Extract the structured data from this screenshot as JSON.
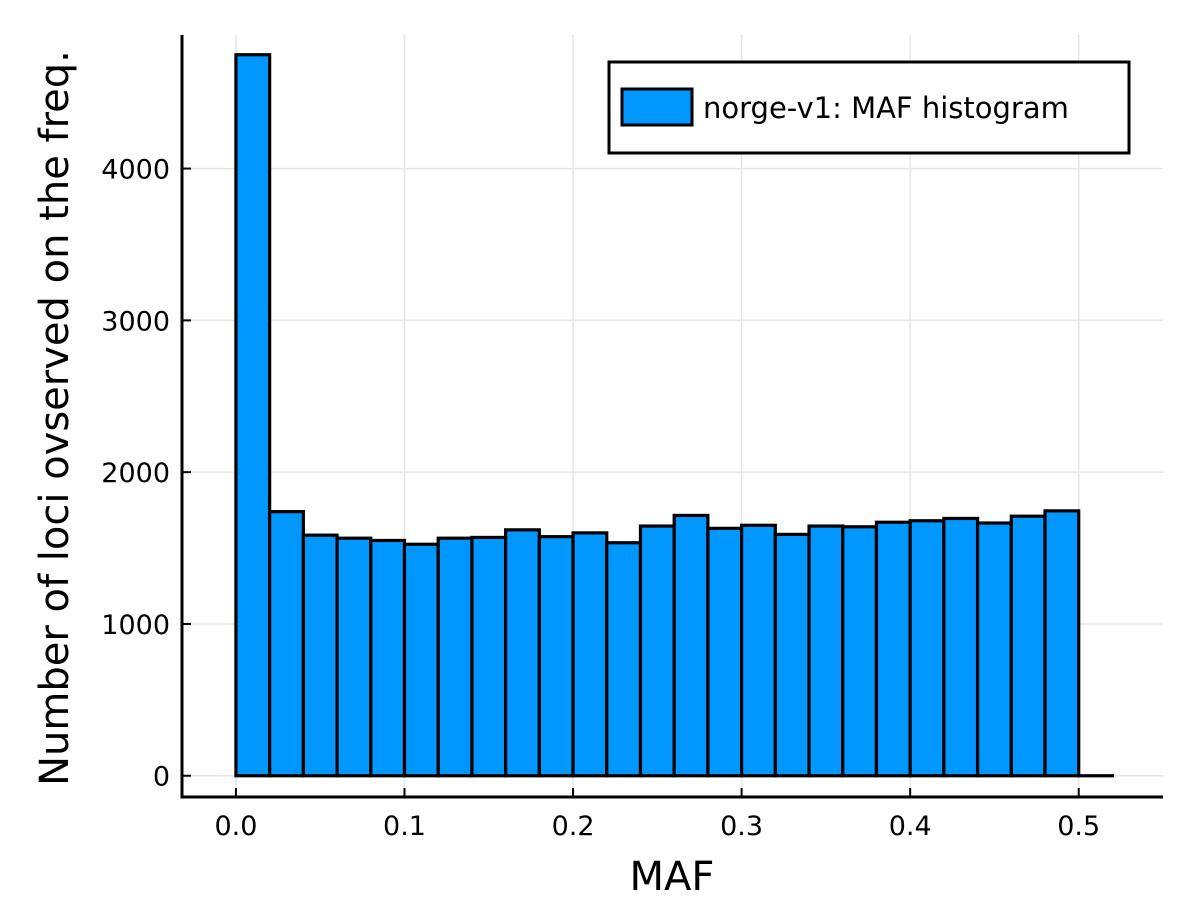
{
  "chart_data": {
    "type": "bar",
    "xlabel": "MAF",
    "ylabel": "Number of loci ovserved on the freq.",
    "legend": {
      "position": "top-right",
      "entries": [
        "norge-v1: MAF histogram"
      ]
    },
    "bar_color": "#0097ff",
    "grid": true,
    "xlim": [
      -0.032,
      0.55
    ],
    "ylim": [
      -140,
      4880
    ],
    "x_ticks": [
      0.0,
      0.1,
      0.2,
      0.3,
      0.4,
      0.5
    ],
    "x_tick_labels": [
      "0.0",
      "0.1",
      "0.2",
      "0.3",
      "0.4",
      "0.5"
    ],
    "y_ticks": [
      0,
      1000,
      2000,
      3000,
      4000
    ],
    "y_tick_labels": [
      "0",
      "1000",
      "2000",
      "3000",
      "4000"
    ],
    "bin_edges": [
      0.0,
      0.02,
      0.04,
      0.06,
      0.08,
      0.1,
      0.12,
      0.14,
      0.16,
      0.18,
      0.2,
      0.22,
      0.24,
      0.26,
      0.28,
      0.3,
      0.32,
      0.34,
      0.36,
      0.38,
      0.4,
      0.42,
      0.44,
      0.46,
      0.48,
      0.5,
      0.52
    ],
    "series": [
      {
        "name": "norge-v1: MAF histogram",
        "values": [
          4750,
          1740,
          1585,
          1565,
          1550,
          1525,
          1565,
          1570,
          1620,
          1575,
          1600,
          1535,
          1645,
          1715,
          1630,
          1650,
          1590,
          1645,
          1640,
          1670,
          1680,
          1695,
          1665,
          1710,
          1745,
          0
        ]
      }
    ]
  }
}
